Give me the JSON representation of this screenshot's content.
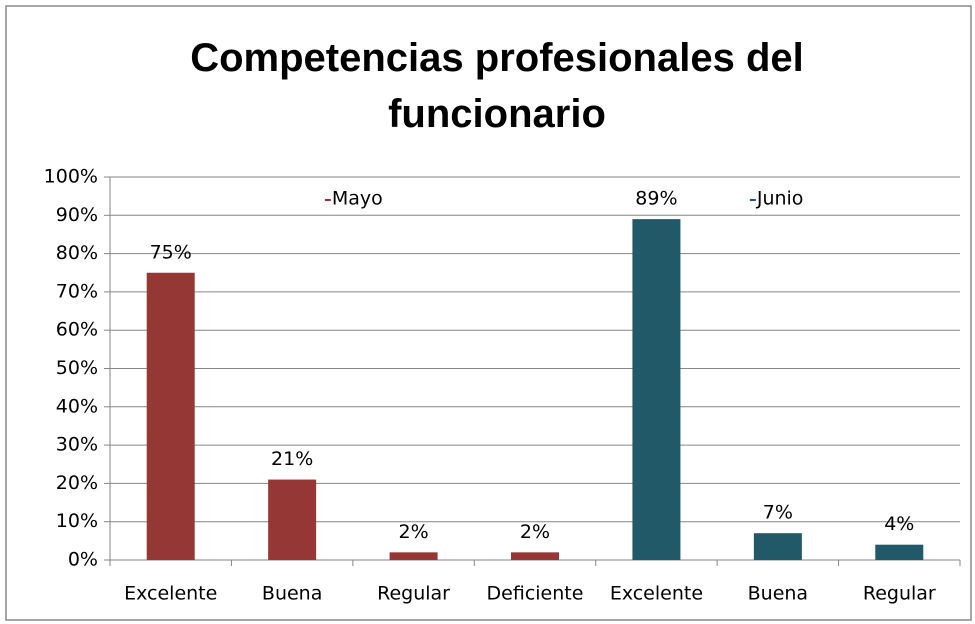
{
  "chart_data": {
    "type": "bar",
    "title": "Competencias profesionales del funcionario",
    "categories": [
      "Excelente",
      "Buena",
      "Regular",
      "Deficiente",
      "Excelente",
      "Buena",
      "Regular"
    ],
    "series": [
      {
        "name": "Mayo",
        "color": "#953735",
        "values": [
          75,
          21,
          2,
          2,
          null,
          null,
          null
        ],
        "value_labels": [
          "75%",
          "21%",
          "2%",
          "2%",
          null,
          null,
          null
        ]
      },
      {
        "name": "Junio",
        "color": "#215968",
        "values": [
          null,
          null,
          null,
          null,
          89,
          7,
          4
        ],
        "value_labels": [
          null,
          null,
          null,
          null,
          "89%",
          "7%",
          "4%"
        ]
      }
    ],
    "ylim": [
      0,
      100
    ],
    "yticks": [
      {
        "value": 0,
        "label": "0%"
      },
      {
        "value": 10,
        "label": "10%"
      },
      {
        "value": 20,
        "label": "20%"
      },
      {
        "value": 30,
        "label": "30%"
      },
      {
        "value": 40,
        "label": "40%"
      },
      {
        "value": 50,
        "label": "50%"
      },
      {
        "value": 60,
        "label": "60%"
      },
      {
        "value": 70,
        "label": "70%"
      },
      {
        "value": 80,
        "label": "80%"
      },
      {
        "value": 90,
        "label": "90%"
      },
      {
        "value": 100,
        "label": "100%"
      }
    ],
    "grid": true
  }
}
